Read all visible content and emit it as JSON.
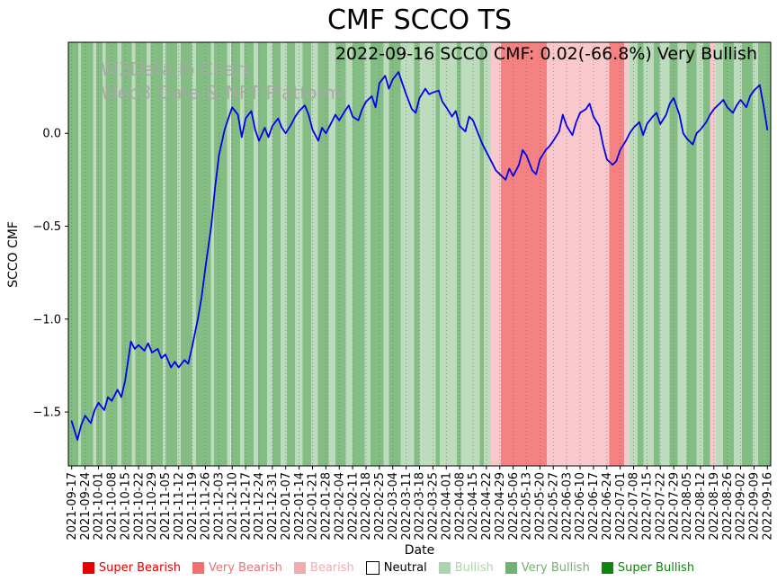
{
  "figure": {
    "title": "CMF SCCO TS",
    "annotation": "2022-09-16 SCCO CMF: 0.02(-66.8%) Very Bullish",
    "watermark_line1": "W3Data.io Chart",
    "watermark_line2": "Web3 Data & NFT Platform"
  },
  "chart_data": {
    "type": "line",
    "title": "CMF SCCO TS",
    "xlabel": "Date",
    "ylabel": "SCCO CMF",
    "grid": "vertical dotted gridline at each weekly x tick",
    "legend_position": "bottom",
    "ylim": [
      -1.79,
      0.49
    ],
    "xlim_weeks": [
      -0.25,
      52.25
    ],
    "yticks": [
      {
        "value": 0.0,
        "label": "0.0"
      },
      {
        "value": -0.5,
        "label": "−0.5"
      },
      {
        "value": -1.0,
        "label": "−1.0"
      },
      {
        "value": -1.5,
        "label": "−1.5"
      }
    ],
    "x_tick_labels": [
      "2021-09-17",
      "2021-09-24",
      "2021-10-01",
      "2021-10-08",
      "2021-10-15",
      "2021-10-22",
      "2021-10-29",
      "2021-11-05",
      "2021-11-12",
      "2021-11-19",
      "2021-11-26",
      "2021-12-03",
      "2021-12-10",
      "2021-12-17",
      "2021-12-24",
      "2021-12-31",
      "2022-01-07",
      "2022-01-14",
      "2022-01-21",
      "2022-01-28",
      "2022-02-04",
      "2022-02-11",
      "2022-02-18",
      "2022-02-25",
      "2022-03-04",
      "2022-03-11",
      "2022-03-18",
      "2022-03-25",
      "2022-04-01",
      "2022-04-08",
      "2022-04-15",
      "2022-04-22",
      "2022-04-29",
      "2022-05-06",
      "2022-05-13",
      "2022-05-20",
      "2022-05-27",
      "2022-06-03",
      "2022-06-10",
      "2022-06-17",
      "2022-06-24",
      "2022-07-01",
      "2022-07-08",
      "2022-07-15",
      "2022-07-22",
      "2022-07-29",
      "2022-08-05",
      "2022-08-12",
      "2022-08-19",
      "2022-08-26",
      "2022-09-02",
      "2022-09-09",
      "2022-09-16"
    ],
    "series": [
      {
        "name": "SCCO CMF",
        "color": "#0000ee",
        "points": [
          [
            0,
            -1.55
          ],
          [
            0.43,
            -1.65
          ],
          [
            0.71,
            -1.57
          ],
          [
            1,
            -1.52
          ],
          [
            1.43,
            -1.56
          ],
          [
            1.71,
            -1.49
          ],
          [
            2,
            -1.45
          ],
          [
            2.43,
            -1.49
          ],
          [
            2.71,
            -1.42
          ],
          [
            3,
            -1.44
          ],
          [
            3.43,
            -1.38
          ],
          [
            3.71,
            -1.42
          ],
          [
            4,
            -1.33
          ],
          [
            4.43,
            -1.12
          ],
          [
            4.71,
            -1.16
          ],
          [
            5,
            -1.14
          ],
          [
            5.43,
            -1.17
          ],
          [
            5.71,
            -1.13
          ],
          [
            6,
            -1.18
          ],
          [
            6.43,
            -1.16
          ],
          [
            6.71,
            -1.21
          ],
          [
            7,
            -1.19
          ],
          [
            7.43,
            -1.26
          ],
          [
            7.71,
            -1.23
          ],
          [
            8,
            -1.26
          ],
          [
            8.43,
            -1.22
          ],
          [
            8.71,
            -1.24
          ],
          [
            9,
            -1.15
          ],
          [
            9.43,
            -1.0
          ],
          [
            9.71,
            -0.88
          ],
          [
            10,
            -0.72
          ],
          [
            10.43,
            -0.5
          ],
          [
            10.71,
            -0.3
          ],
          [
            11,
            -0.12
          ],
          [
            11.43,
            0.02
          ],
          [
            11.71,
            0.08
          ],
          [
            12,
            0.14
          ],
          [
            12.43,
            0.1
          ],
          [
            12.71,
            -0.02
          ],
          [
            13,
            0.08
          ],
          [
            13.43,
            0.12
          ],
          [
            13.71,
            0.02
          ],
          [
            14,
            -0.04
          ],
          [
            14.43,
            0.03
          ],
          [
            14.71,
            -0.02
          ],
          [
            15,
            0.04
          ],
          [
            15.43,
            0.08
          ],
          [
            15.71,
            0.03
          ],
          [
            16,
            0.0
          ],
          [
            16.43,
            0.05
          ],
          [
            16.71,
            0.09
          ],
          [
            17,
            0.12
          ],
          [
            17.43,
            0.15
          ],
          [
            17.71,
            0.1
          ],
          [
            18,
            0.02
          ],
          [
            18.43,
            -0.04
          ],
          [
            18.71,
            0.03
          ],
          [
            19,
            0.0
          ],
          [
            19.43,
            0.06
          ],
          [
            19.71,
            0.1
          ],
          [
            20,
            0.07
          ],
          [
            20.43,
            0.12
          ],
          [
            20.71,
            0.15
          ],
          [
            21,
            0.09
          ],
          [
            21.43,
            0.07
          ],
          [
            21.71,
            0.13
          ],
          [
            22,
            0.17
          ],
          [
            22.43,
            0.2
          ],
          [
            22.71,
            0.14
          ],
          [
            23,
            0.27
          ],
          [
            23.43,
            0.31
          ],
          [
            23.71,
            0.24
          ],
          [
            24,
            0.29
          ],
          [
            24.43,
            0.33
          ],
          [
            24.71,
            0.27
          ],
          [
            25,
            0.21
          ],
          [
            25.43,
            0.13
          ],
          [
            25.71,
            0.11
          ],
          [
            26,
            0.19
          ],
          [
            26.43,
            0.24
          ],
          [
            26.71,
            0.21
          ],
          [
            27,
            0.22
          ],
          [
            27.43,
            0.23
          ],
          [
            27.71,
            0.17
          ],
          [
            28,
            0.14
          ],
          [
            28.43,
            0.09
          ],
          [
            28.71,
            0.12
          ],
          [
            29,
            0.04
          ],
          [
            29.43,
            0.01
          ],
          [
            29.71,
            0.09
          ],
          [
            30,
            0.07
          ],
          [
            30.43,
            -0.01
          ],
          [
            30.71,
            -0.06
          ],
          [
            31,
            -0.1
          ],
          [
            31.43,
            -0.16
          ],
          [
            31.71,
            -0.2
          ],
          [
            32,
            -0.22
          ],
          [
            32.43,
            -0.25
          ],
          [
            32.71,
            -0.19
          ],
          [
            33,
            -0.23
          ],
          [
            33.43,
            -0.17
          ],
          [
            33.71,
            -0.09
          ],
          [
            34,
            -0.12
          ],
          [
            34.43,
            -0.2
          ],
          [
            34.71,
            -0.22
          ],
          [
            35,
            -0.14
          ],
          [
            35.43,
            -0.09
          ],
          [
            35.71,
            -0.07
          ],
          [
            36,
            -0.04
          ],
          [
            36.43,
            0.01
          ],
          [
            36.71,
            0.1
          ],
          [
            37,
            0.04
          ],
          [
            37.43,
            -0.01
          ],
          [
            37.71,
            0.06
          ],
          [
            38,
            0.11
          ],
          [
            38.43,
            0.13
          ],
          [
            38.71,
            0.16
          ],
          [
            39,
            0.09
          ],
          [
            39.43,
            0.04
          ],
          [
            39.71,
            -0.06
          ],
          [
            40,
            -0.14
          ],
          [
            40.43,
            -0.17
          ],
          [
            40.71,
            -0.15
          ],
          [
            41,
            -0.09
          ],
          [
            41.43,
            -0.04
          ],
          [
            41.71,
            0.0
          ],
          [
            42,
            0.03
          ],
          [
            42.43,
            0.06
          ],
          [
            42.71,
            -0.01
          ],
          [
            43,
            0.05
          ],
          [
            43.43,
            0.09
          ],
          [
            43.71,
            0.11
          ],
          [
            44,
            0.05
          ],
          [
            44.43,
            0.1
          ],
          [
            44.71,
            0.16
          ],
          [
            45,
            0.19
          ],
          [
            45.43,
            0.1
          ],
          [
            45.71,
            0.0
          ],
          [
            46,
            -0.03
          ],
          [
            46.43,
            -0.06
          ],
          [
            46.71,
            0.0
          ],
          [
            47,
            0.02
          ],
          [
            47.43,
            0.06
          ],
          [
            47.71,
            0.1
          ],
          [
            48,
            0.13
          ],
          [
            48.43,
            0.16
          ],
          [
            48.71,
            0.18
          ],
          [
            49,
            0.14
          ],
          [
            49.43,
            0.11
          ],
          [
            49.71,
            0.15
          ],
          [
            50,
            0.18
          ],
          [
            50.43,
            0.14
          ],
          [
            50.71,
            0.2
          ],
          [
            51,
            0.23
          ],
          [
            51.43,
            0.26
          ],
          [
            51.71,
            0.15
          ],
          [
            52,
            0.02
          ]
        ]
      }
    ],
    "sentiment_bands": [
      [
        -0.25,
        0.5,
        "very_bullish"
      ],
      [
        0.5,
        0.7,
        "bullish"
      ],
      [
        0.7,
        1.6,
        "very_bullish"
      ],
      [
        1.6,
        1.85,
        "bullish"
      ],
      [
        1.85,
        2.3,
        "very_bullish"
      ],
      [
        2.3,
        2.55,
        "bullish"
      ],
      [
        2.55,
        3.4,
        "very_bullish"
      ],
      [
        3.4,
        3.7,
        "bullish"
      ],
      [
        3.7,
        4.5,
        "very_bullish"
      ],
      [
        4.5,
        4.75,
        "bullish"
      ],
      [
        4.75,
        5.6,
        "very_bullish"
      ],
      [
        5.6,
        5.9,
        "bullish"
      ],
      [
        5.9,
        6.8,
        "very_bullish"
      ],
      [
        6.8,
        7.05,
        "bullish"
      ],
      [
        7.05,
        7.9,
        "very_bullish"
      ],
      [
        7.9,
        8.15,
        "bullish"
      ],
      [
        8.15,
        9.0,
        "very_bullish"
      ],
      [
        9.0,
        9.3,
        "bullish"
      ],
      [
        9.3,
        10.4,
        "very_bullish"
      ],
      [
        10.4,
        10.65,
        "bullish"
      ],
      [
        10.65,
        11.6,
        "very_bullish"
      ],
      [
        11.6,
        11.9,
        "bullish"
      ],
      [
        11.9,
        12.6,
        "very_bullish"
      ],
      [
        12.6,
        12.9,
        "bullish"
      ],
      [
        12.9,
        13.6,
        "very_bullish"
      ],
      [
        13.6,
        13.95,
        "bullish"
      ],
      [
        13.95,
        14.6,
        "very_bullish"
      ],
      [
        14.6,
        15.0,
        "bullish"
      ],
      [
        15.0,
        15.6,
        "very_bullish"
      ],
      [
        15.6,
        16.1,
        "bullish"
      ],
      [
        16.1,
        16.7,
        "very_bullish"
      ],
      [
        16.7,
        17.25,
        "bullish"
      ],
      [
        17.25,
        17.9,
        "very_bullish"
      ],
      [
        17.9,
        18.4,
        "bullish"
      ],
      [
        18.4,
        19.2,
        "very_bullish"
      ],
      [
        19.2,
        19.7,
        "bullish"
      ],
      [
        19.7,
        20.5,
        "very_bullish"
      ],
      [
        20.5,
        21.0,
        "bullish"
      ],
      [
        21.0,
        21.9,
        "very_bullish"
      ],
      [
        21.9,
        22.35,
        "bullish"
      ],
      [
        22.35,
        23.3,
        "very_bullish"
      ],
      [
        23.3,
        23.7,
        "bullish"
      ],
      [
        23.7,
        24.6,
        "very_bullish"
      ],
      [
        24.6,
        25.6,
        "bullish"
      ],
      [
        25.6,
        26.0,
        "very_bullish"
      ],
      [
        26.0,
        27.2,
        "bullish"
      ],
      [
        27.2,
        27.5,
        "very_bullish"
      ],
      [
        27.5,
        28.8,
        "bullish"
      ],
      [
        28.8,
        29.1,
        "very_bullish"
      ],
      [
        29.1,
        30.5,
        "bullish"
      ],
      [
        30.5,
        30.8,
        "very_bullish"
      ],
      [
        30.8,
        31.35,
        "bullish"
      ],
      [
        31.35,
        32.1,
        "bearish"
      ],
      [
        32.1,
        35.5,
        "very_bearish"
      ],
      [
        35.5,
        40.2,
        "bearish"
      ],
      [
        40.2,
        41.3,
        "very_bearish"
      ],
      [
        41.3,
        41.7,
        "bearish"
      ],
      [
        41.7,
        42.3,
        "bullish"
      ],
      [
        42.3,
        42.75,
        "very_bullish"
      ],
      [
        42.75,
        43.5,
        "bullish"
      ],
      [
        43.5,
        43.95,
        "very_bullish"
      ],
      [
        43.95,
        44.7,
        "bullish"
      ],
      [
        44.7,
        45.3,
        "very_bullish"
      ],
      [
        45.3,
        45.95,
        "bullish"
      ],
      [
        45.95,
        46.7,
        "very_bullish"
      ],
      [
        46.7,
        47.2,
        "bullish"
      ],
      [
        47.2,
        47.7,
        "very_bullish"
      ],
      [
        47.7,
        48.15,
        "bearish"
      ],
      [
        48.15,
        48.7,
        "bullish"
      ],
      [
        48.7,
        49.5,
        "very_bullish"
      ],
      [
        49.5,
        50.1,
        "bullish"
      ],
      [
        50.1,
        50.9,
        "very_bullish"
      ],
      [
        50.9,
        51.3,
        "bullish"
      ],
      [
        51.3,
        52.25,
        "very_bullish"
      ]
    ],
    "band_colors": {
      "super_bearish": "#e60000",
      "very_bearish": "#f58282",
      "bearish": "#f8c8cd",
      "neutral": "#ffffff",
      "bullish": "#bddcbd",
      "very_bullish": "#84bd84",
      "super_bullish": "#0c860c"
    },
    "legend": [
      {
        "label": "Super Bearish",
        "color": "#e60000"
      },
      {
        "label": "Very Bearish",
        "color": "#f07070"
      },
      {
        "label": "Bearish",
        "color": "#f4aab1"
      },
      {
        "label": "Neutral",
        "color": "#ffffff",
        "text_color": "#000000",
        "edge": "#000000"
      },
      {
        "label": "Bullish",
        "color": "#aed3ae"
      },
      {
        "label": "Very Bullish",
        "color": "#72b172"
      },
      {
        "label": "Super Bullish",
        "color": "#0c860c"
      }
    ]
  }
}
